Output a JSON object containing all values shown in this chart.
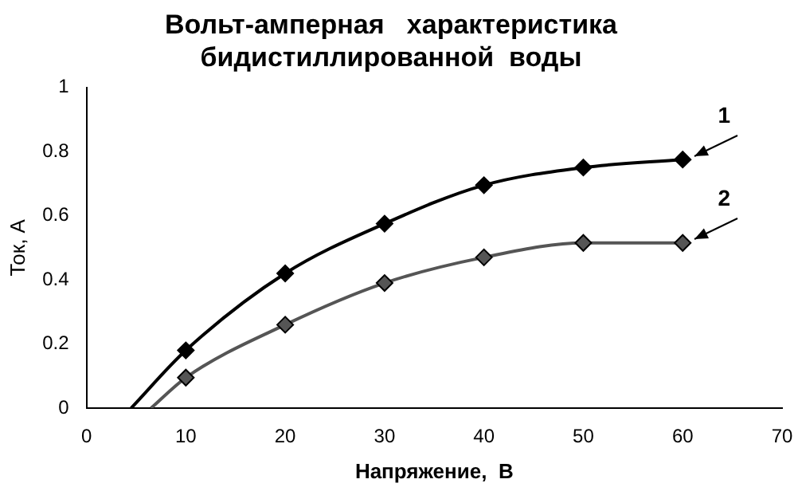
{
  "chart_data": {
    "type": "line",
    "title": "Вольт-амперная   характеристика\nбидистиллированной  воды",
    "xlabel": "Напряжение,  В",
    "ylabel": "Ток, А",
    "xlim": [
      0,
      70
    ],
    "xticks": [
      0,
      10,
      20,
      30,
      40,
      50,
      60,
      70
    ],
    "ylim": [
      0,
      1
    ],
    "yticks": [
      0,
      0.2,
      0.4,
      0.6,
      0.8,
      1
    ],
    "grid": false,
    "legend": false,
    "marker": "diamond",
    "line_style": "solid",
    "series": [
      {
        "name": "1",
        "color": "#000000",
        "x": [
          4.5,
          10,
          20,
          30,
          40,
          50,
          60
        ],
        "values": [
          0,
          0.18,
          0.42,
          0.575,
          0.695,
          0.75,
          0.775
        ]
      },
      {
        "name": "2",
        "color": "#555555",
        "x": [
          6.5,
          10,
          20,
          30,
          40,
          50,
          60
        ],
        "values": [
          0,
          0.095,
          0.26,
          0.39,
          0.47,
          0.515,
          0.515
        ]
      }
    ]
  }
}
